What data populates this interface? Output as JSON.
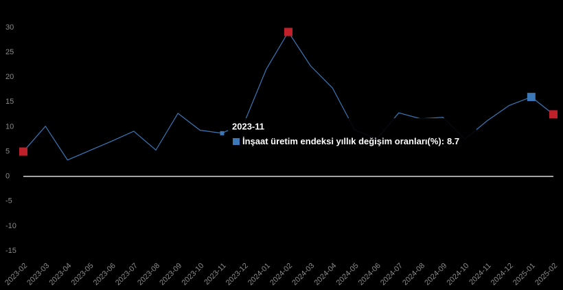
{
  "chart_data": {
    "type": "line",
    "categories": [
      "2023-02",
      "2023-03",
      "2023-04",
      "2023-05",
      "2023-06",
      "2023-07",
      "2023-08",
      "2023-09",
      "2023-10",
      "2023-11",
      "2023-12",
      "2024-01",
      "2024-02",
      "2024-03",
      "2024-04",
      "2024-05",
      "2024-06",
      "2024-07",
      "2024-08",
      "2024-09",
      "2024-10",
      "2024-11",
      "2024-12",
      "2025-01",
      "2025-02"
    ],
    "series": [
      {
        "name": "İnşaat üretim endeksi yıllık değişim oranları(%)",
        "color": "#3a78b8",
        "values": [
          5.0,
          10.1,
          3.3,
          5.2,
          7.1,
          9.1,
          5.3,
          12.7,
          9.3,
          8.7,
          10.8,
          21.6,
          29.1,
          22.3,
          17.8,
          9.4,
          7.5,
          12.8,
          11.6,
          11.9,
          7.5,
          11.2,
          14.3,
          16.0,
          12.5
        ]
      }
    ],
    "ylim": [
      -15,
      30
    ],
    "yticks": [
      -15,
      -10,
      -5,
      0,
      5,
      10,
      15,
      20,
      25,
      30
    ],
    "grid": false,
    "markers": [
      {
        "x": "2023-02",
        "color": "#c0202a"
      },
      {
        "x": "2024-02",
        "color": "#c0202a"
      },
      {
        "x": "2025-02",
        "color": "#c0202a"
      },
      {
        "x": "2025-01",
        "color": "#3a78b8"
      }
    ],
    "tooltip": {
      "title": "2023-11",
      "label": "İnşaat üretim endeksi yıllık değişim oranları(%):",
      "value": 8.7,
      "color": "#3a78b8"
    }
  }
}
